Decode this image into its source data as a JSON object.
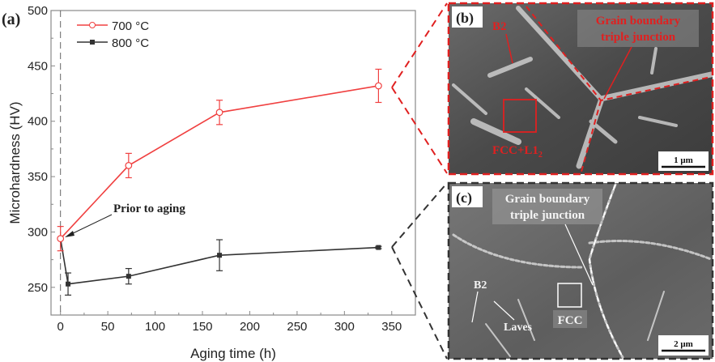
{
  "chart_data": {
    "type": "line",
    "panel_label": "(a)",
    "xlabel": "Aging time (h)",
    "ylabel": "Microhardness (HV)",
    "xlim": [
      -10,
      375
    ],
    "ylim": [
      225,
      500
    ],
    "xticks": [
      0,
      50,
      100,
      150,
      200,
      250,
      300,
      350
    ],
    "yticks": [
      250,
      300,
      350,
      400,
      450,
      500
    ],
    "grid": false,
    "legend_position": "top-left",
    "reference_line_x": 0,
    "series": [
      {
        "name": "700 °C",
        "color": "#f04040",
        "marker": "open-circle",
        "x": [
          0,
          72,
          168,
          336
        ],
        "y": [
          294,
          360,
          408,
          432
        ],
        "err": [
          11,
          11,
          11,
          15
        ]
      },
      {
        "name": "800 °C",
        "color": "#333333",
        "marker": "square",
        "x": [
          0,
          8,
          72,
          168,
          336
        ],
        "y": [
          294,
          253,
          260,
          279,
          286
        ],
        "err": [
          0,
          10,
          7,
          14,
          1
        ]
      }
    ],
    "annotation": "Prior to aging"
  },
  "panels": {
    "b": {
      "label": "(b)",
      "border_color": "#e02020",
      "b2": "B2",
      "gb": [
        "Grain boundary",
        "triple junction"
      ],
      "box": "FCC+L1",
      "box_sub": "2",
      "scale": "1 μm"
    },
    "c": {
      "label": "(c)",
      "border_color": "#333333",
      "gb": [
        "Grain boundary",
        "triple junction"
      ],
      "b2": "B2",
      "laves": "Laves",
      "box": "FCC",
      "scale": "2 μm"
    }
  }
}
